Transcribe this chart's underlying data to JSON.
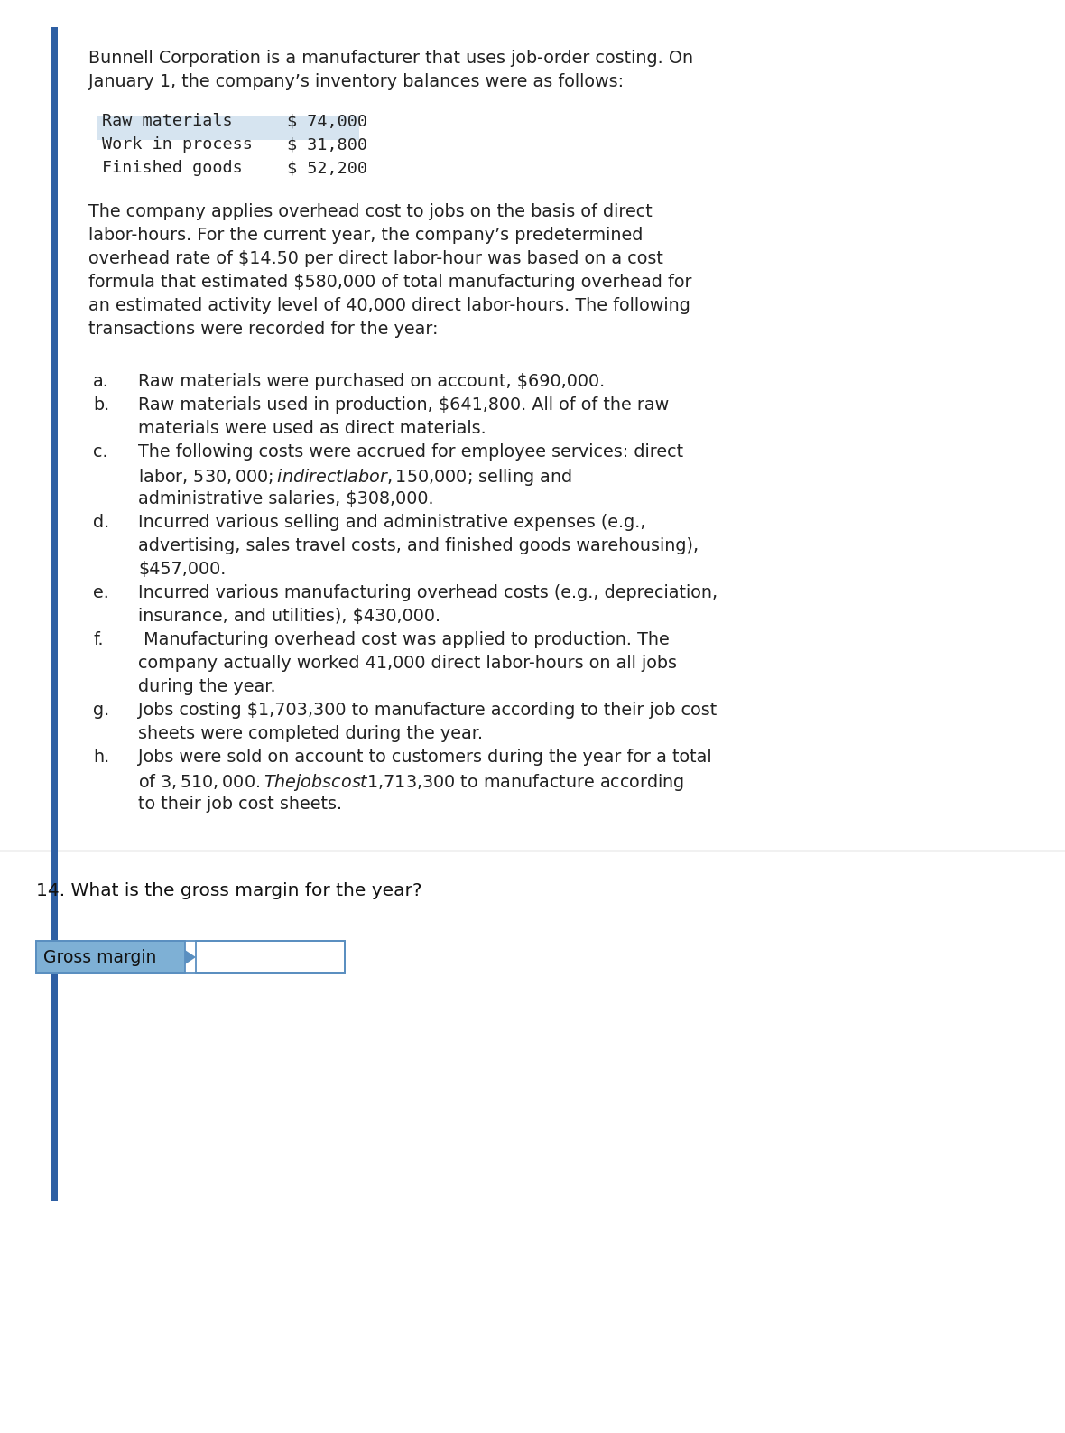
{
  "background_color": "#ffffff",
  "left_bar_color": "#2e5fa3",
  "page_bg": "#f5f5f5",
  "content_bg": "#ffffff",
  "paragraph1_line1": "Bunnell Corporation is a manufacturer that uses job-order costing. On",
  "paragraph1_line2": "January 1, the company’s inventory balances were as follows:",
  "mono_items": [
    [
      "Raw materials",
      "$ 74,000"
    ],
    [
      "Work in process",
      "$ 31,800"
    ],
    [
      "Finished goods",
      "$ 52,200"
    ]
  ],
  "mono_highlight_idx": 1,
  "highlight_color": "#d6e4f0",
  "paragraph2_lines": [
    "The company applies overhead cost to jobs on the basis of direct",
    "labor-hours. For the current year, the company’s predetermined",
    "overhead rate of $14.50 per direct labor-hour was based on a cost",
    "formula that estimated $580,000 of total manufacturing overhead for",
    "an estimated activity level of 40,000 direct labor-hours. The following",
    "transactions were recorded for the year:"
  ],
  "list_items": [
    {
      "letter": "a.",
      "lines": [
        "Raw materials were purchased on account, $690,000."
      ]
    },
    {
      "letter": "b.",
      "lines": [
        "Raw materials used in production, $641,800. All of of the raw",
        "materials were used as direct materials."
      ]
    },
    {
      "letter": "c.",
      "lines": [
        "The following costs were accrued for employee services: direct",
        "labor, $530,000; indirect labor, $150,000; selling and",
        "administrative salaries, $308,000."
      ]
    },
    {
      "letter": "d.",
      "lines": [
        "Incurred various selling and administrative expenses (e.g.,",
        "advertising, sales travel costs, and finished goods warehousing),",
        "$457,000."
      ]
    },
    {
      "letter": "e.",
      "lines": [
        "Incurred various manufacturing overhead costs (e.g., depreciation,",
        "insurance, and utilities), $430,000."
      ]
    },
    {
      "letter": "f.",
      "lines": [
        " Manufacturing overhead cost was applied to production. The",
        "company actually worked 41,000 direct labor-hours on all jobs",
        "during the year."
      ]
    },
    {
      "letter": "g.",
      "lines": [
        "Jobs costing $1,703,300 to manufacture according to their job cost",
        "sheets were completed during the year."
      ]
    },
    {
      "letter": "h.",
      "lines": [
        "Jobs were sold on account to customers during the year for a total",
        "of $3,510,000. The jobs cost $1,713,300 to manufacture according",
        "to their job cost sheets."
      ]
    }
  ],
  "question": "14. What is the gross margin for the year?",
  "label_text": "Gross margin",
  "label_bg": "#7eb0d5",
  "label_border": "#5a8fc0",
  "input_bg": "#ffffff",
  "input_border": "#5a8fc0",
  "separator_color": "#bbbbbb",
  "font_body": 13.8,
  "font_mono": 13.2,
  "font_question": 14.5,
  "font_label": 13.5
}
